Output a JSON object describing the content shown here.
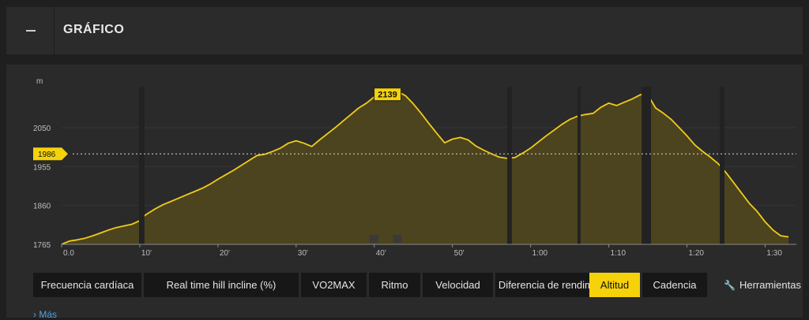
{
  "header": {
    "title": "GRÁFICO",
    "collapse_icon": "minus-icon"
  },
  "chart_data": {
    "type": "area",
    "ylabel": "m",
    "ylim": [
      1765,
      2150
    ],
    "yticks": [
      1765,
      1860,
      1955,
      2050
    ],
    "xlim": [
      0,
      94
    ],
    "xticks": [
      {
        "v": 0,
        "label": "0.0"
      },
      {
        "v": 10,
        "label": "10'"
      },
      {
        "v": 20,
        "label": "20'"
      },
      {
        "v": 30,
        "label": "30'"
      },
      {
        "v": 40,
        "label": "40'"
      },
      {
        "v": 50,
        "label": "50'"
      },
      {
        "v": 60,
        "label": "1:00"
      },
      {
        "v": 70,
        "label": "1:10"
      },
      {
        "v": 80,
        "label": "1:20"
      },
      {
        "v": 90,
        "label": "1:30"
      }
    ],
    "x": [
      0,
      1,
      2,
      3,
      4,
      5,
      6,
      7,
      8,
      9,
      9.9,
      10.6,
      11,
      12,
      13,
      14,
      15,
      16,
      17,
      18,
      19,
      20,
      21,
      22,
      23,
      24,
      25,
      26,
      27,
      28,
      29,
      30,
      31,
      32,
      33,
      34,
      35,
      36,
      37,
      38,
      39,
      40,
      41,
      42,
      43,
      44,
      45,
      46,
      47,
      48,
      49,
      50,
      51,
      52,
      53,
      54,
      55,
      56,
      57,
      58,
      59,
      60,
      61,
      62,
      63,
      64,
      65,
      66,
      67,
      68,
      69,
      70,
      71,
      72,
      73,
      74,
      74.8,
      75,
      76,
      77,
      78,
      79,
      80,
      81,
      82,
      83,
      84,
      85,
      86,
      87,
      88,
      89,
      90,
      91,
      92,
      93
    ],
    "values": [
      1765,
      1773,
      1776,
      1780,
      1786,
      1793,
      1800,
      1806,
      1810,
      1814,
      1822,
      1835,
      1840,
      1852,
      1862,
      1870,
      1878,
      1886,
      1894,
      1902,
      1912,
      1924,
      1935,
      1946,
      1958,
      1970,
      1982,
      1985,
      1992,
      2000,
      2012,
      2018,
      2012,
      2004,
      2020,
      2035,
      2050,
      2066,
      2082,
      2098,
      2110,
      2125,
      2136,
      2139,
      2138,
      2128,
      2108,
      2085,
      2060,
      2036,
      2013,
      2022,
      2026,
      2020,
      2005,
      1995,
      1986,
      1978,
      1975,
      1977,
      1988,
      2000,
      2015,
      2030,
      2044,
      2058,
      2070,
      2078,
      2082,
      2085,
      2100,
      2110,
      2104,
      2112,
      2120,
      2130,
      2133,
      2130,
      2098,
      2085,
      2070,
      2050,
      2030,
      2008,
      1992,
      1978,
      1962,
      1940,
      1915,
      1890,
      1865,
      1845,
      1820,
      1800,
      1786,
      1783
    ],
    "gaps": [
      [
        9.9,
        10.6
      ],
      [
        57.0,
        57.6
      ],
      [
        66.0,
        66.4
      ],
      [
        74.2,
        75.4
      ],
      [
        84.2,
        84.8
      ]
    ],
    "peak": {
      "x": 42,
      "label": "2139"
    },
    "reference": {
      "value": 1986,
      "label": "1986"
    }
  },
  "tabs": [
    {
      "label": "Frecuencia cardíaca",
      "active": false
    },
    {
      "label": "Real time hill incline (%)",
      "active": false
    },
    {
      "label": "VO2MAX",
      "active": false
    },
    {
      "label": "Ritmo",
      "active": false
    },
    {
      "label": "Velocidad",
      "active": false
    },
    {
      "label": "Diferencia de rendimiento",
      "active": false
    },
    {
      "label": "Altitud",
      "active": true
    },
    {
      "label": "Cadencia",
      "active": false
    }
  ],
  "tools": {
    "label": "Herramientas",
    "icon": "wrench-icon"
  },
  "more": {
    "label": "Más",
    "icon": "chevron-right-icon"
  },
  "colors": {
    "accent": "#f5d20a",
    "line": "#f0cc1a",
    "fill": "#4d461e",
    "panel": "#2a2a2a"
  }
}
